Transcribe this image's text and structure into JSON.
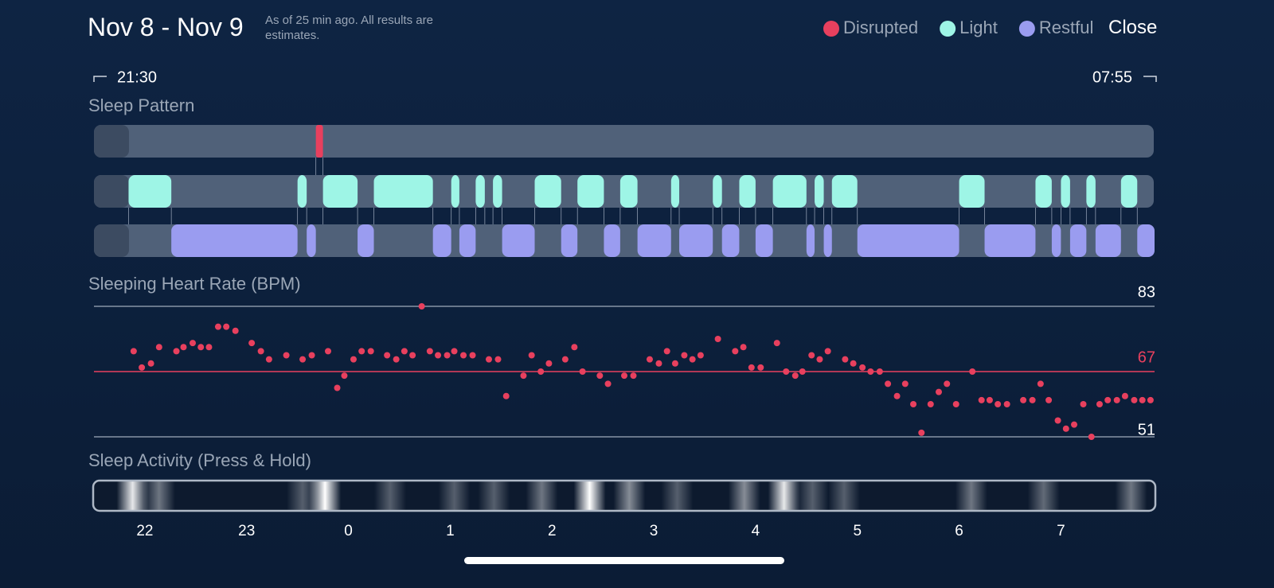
{
  "header": {
    "title": "Nov 8 - Nov 9",
    "subtitle": "As of 25 min ago. All results are estimates.",
    "close": "Close"
  },
  "chart_data": [
    {
      "type": "timeline",
      "title": "Sleep Pattern",
      "start_label": "21:30",
      "end_label": "07:55",
      "xlim": [
        21.5,
        31.92
      ],
      "series": [
        {
          "name": "Disrupted",
          "color": "#e8405e",
          "segments": [
            [
              23.68,
              23.75
            ]
          ]
        },
        {
          "name": "Light",
          "color": "#9ef5e6",
          "segments": [
            [
              21.84,
              22.26
            ],
            [
              23.5,
              23.59
            ],
            [
              23.75,
              24.09
            ],
            [
              24.25,
              24.83
            ],
            [
              25.01,
              25.09
            ],
            [
              25.25,
              25.34
            ],
            [
              25.42,
              25.51
            ],
            [
              25.83,
              26.09
            ],
            [
              26.25,
              26.51
            ],
            [
              26.67,
              26.84
            ],
            [
              27.17,
              27.25
            ],
            [
              27.58,
              27.67
            ],
            [
              27.84,
              28.0
            ],
            [
              28.17,
              28.5
            ],
            [
              28.58,
              28.67
            ],
            [
              28.75,
              29.0
            ],
            [
              30.0,
              30.25
            ],
            [
              30.75,
              30.91
            ],
            [
              31.0,
              31.09
            ],
            [
              31.25,
              31.34
            ],
            [
              31.59,
              31.75
            ]
          ]
        },
        {
          "name": "Restful",
          "color": "#9a9cf0",
          "segments": [
            [
              22.26,
              23.5
            ],
            [
              23.59,
              23.68
            ],
            [
              24.09,
              24.25
            ],
            [
              24.83,
              25.01
            ],
            [
              25.09,
              25.25
            ],
            [
              25.51,
              25.83
            ],
            [
              26.09,
              26.25
            ],
            [
              26.51,
              26.67
            ],
            [
              26.84,
              27.17
            ],
            [
              27.25,
              27.58
            ],
            [
              27.67,
              27.84
            ],
            [
              28.0,
              28.17
            ],
            [
              28.5,
              28.58
            ],
            [
              28.67,
              28.75
            ],
            [
              29.0,
              30.0
            ],
            [
              30.25,
              30.75
            ],
            [
              30.91,
              31.0
            ],
            [
              31.09,
              31.25
            ],
            [
              31.34,
              31.59
            ],
            [
              31.75,
              31.92
            ]
          ]
        }
      ]
    },
    {
      "type": "scatter",
      "title": "Sleeping Heart Rate (BPM)",
      "color": "#e8405e",
      "xlim": [
        21.5,
        31.92
      ],
      "ylim": [
        51,
        83
      ],
      "yticks": [
        51,
        83
      ],
      "average": 67,
      "x": [
        21.89,
        21.97,
        22.06,
        22.14,
        22.31,
        22.38,
        22.47,
        22.55,
        22.63,
        22.72,
        22.8,
        22.89,
        23.05,
        23.14,
        23.22,
        23.39,
        23.55,
        23.64,
        23.8,
        23.89,
        23.96,
        24.05,
        24.13,
        24.22,
        24.38,
        24.47,
        24.55,
        24.63,
        24.72,
        24.8,
        24.88,
        24.97,
        25.04,
        25.13,
        25.22,
        25.38,
        25.47,
        25.55,
        25.72,
        25.8,
        25.89,
        25.97,
        26.13,
        26.22,
        26.3,
        26.47,
        26.55,
        26.71,
        26.8,
        26.96,
        27.05,
        27.13,
        27.21,
        27.3,
        27.38,
        27.46,
        27.63,
        27.8,
        27.88,
        27.96,
        28.05,
        28.21,
        28.3,
        28.39,
        28.46,
        28.55,
        28.63,
        28.71,
        28.88,
        28.96,
        29.05,
        29.13,
        29.22,
        29.3,
        29.39,
        29.47,
        29.55,
        29.63,
        29.72,
        29.8,
        29.88,
        29.97,
        30.13,
        30.22,
        30.3,
        30.38,
        30.47,
        30.63,
        30.72,
        30.8,
        30.88,
        30.97,
        31.05,
        31.13,
        31.22,
        31.3,
        31.38,
        31.46,
        31.55,
        31.63,
        31.72,
        31.8,
        31.88
      ],
      "values": [
        72,
        68,
        69,
        73,
        72,
        73,
        74,
        73,
        73,
        78,
        78,
        77,
        74,
        72,
        70,
        71,
        70,
        71,
        72,
        63,
        66,
        70,
        72,
        72,
        71,
        70,
        72,
        71,
        83,
        72,
        71,
        71,
        72,
        71,
        71,
        70,
        70,
        61,
        66,
        71,
        67,
        69,
        70,
        73,
        67,
        66,
        64,
        66,
        66,
        70,
        69,
        72,
        69,
        71,
        70,
        71,
        75,
        72,
        73,
        68,
        68,
        74,
        67,
        66,
        67,
        71,
        70,
        72,
        70,
        69,
        68,
        67,
        67,
        64,
        61,
        64,
        59,
        52,
        59,
        62,
        64,
        59,
        67,
        60,
        60,
        59,
        59,
        60,
        60,
        64,
        60,
        55,
        53,
        54,
        59,
        51,
        59,
        60,
        60,
        61,
        60,
        60,
        60
      ]
    },
    {
      "type": "activity",
      "title": "Sleep Activity (Press & Hold)",
      "xlim": [
        21.5,
        31.92
      ],
      "xticks": [
        22,
        23,
        {
          "value": 24,
          "label": "0"
        },
        {
          "value": 25,
          "label": "1"
        },
        {
          "value": 26,
          "label": "2"
        },
        {
          "value": 27,
          "label": "3"
        },
        {
          "value": 28,
          "label": "4"
        },
        {
          "value": 29,
          "label": "5"
        },
        {
          "value": 30,
          "label": "6"
        },
        {
          "value": 31,
          "label": "7"
        }
      ],
      "t": [
        21.88,
        22.14,
        23.55,
        23.77,
        24.41,
        25.04,
        25.43,
        25.9,
        26.37,
        26.76,
        27.23,
        27.89,
        28.28,
        28.56,
        28.87,
        30.12,
        30.83,
        31.69
      ],
      "level": [
        0.9,
        0.4,
        0.3,
        1.0,
        0.3,
        0.3,
        0.3,
        0.4,
        1.0,
        0.5,
        0.3,
        0.5,
        0.9,
        0.3,
        0.3,
        0.4,
        0.35,
        0.4
      ]
    }
  ]
}
